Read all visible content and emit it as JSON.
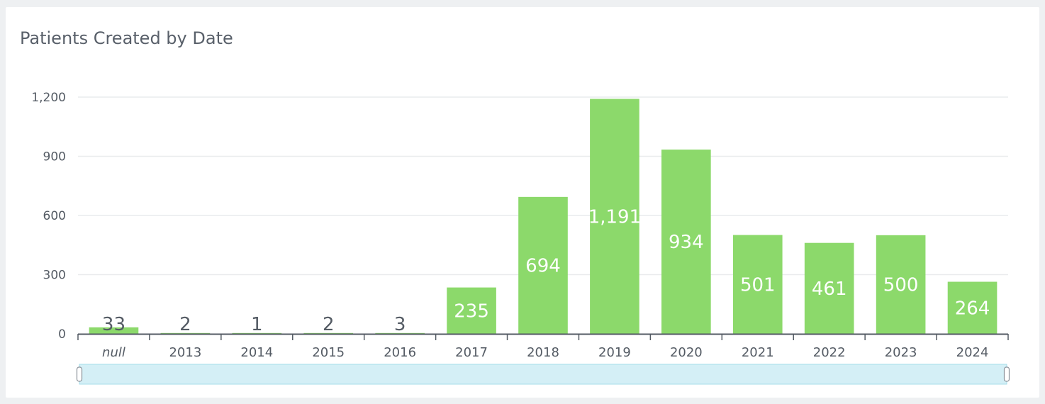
{
  "title": "Patients Created by Date",
  "colors": {
    "bar": "#8cd96b",
    "grid": "#e9ebed",
    "axis": "#545b64",
    "label_inside": "#ffffff",
    "label_outside": "#545b64",
    "scroller_fill": "#d4eff6",
    "scroller_border": "#a6dcea"
  },
  "chart_data": {
    "type": "bar",
    "categories": [
      "null",
      "2013",
      "2014",
      "2015",
      "2016",
      "2017",
      "2018",
      "2019",
      "2020",
      "2021",
      "2022",
      "2023",
      "2024"
    ],
    "values": [
      33,
      2,
      1,
      2,
      3,
      235,
      694,
      1191,
      934,
      501,
      461,
      500,
      264
    ],
    "value_labels": [
      "33",
      "2",
      "1",
      "2",
      "3",
      "235",
      "694",
      "1,191",
      "934",
      "501",
      "461",
      "500",
      "264"
    ],
    "yticks": [
      0,
      300,
      600,
      900,
      1200
    ],
    "ytick_labels": [
      "0",
      "300",
      "600",
      "900",
      "1,200"
    ],
    "ylim": [
      0,
      1200
    ],
    "xlabel": "",
    "ylabel": "",
    "grid": true,
    "legend": "none"
  }
}
